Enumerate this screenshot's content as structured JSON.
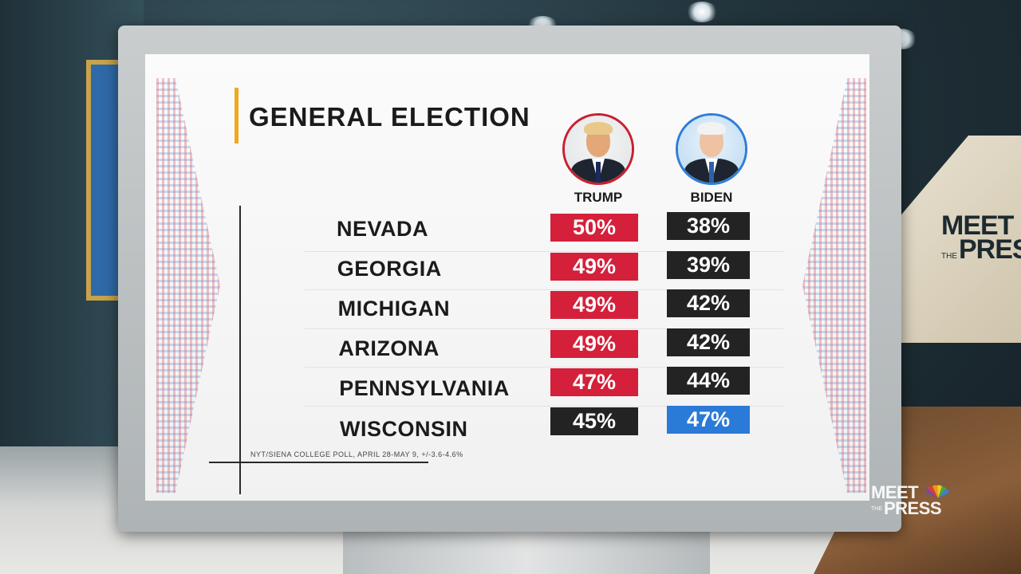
{
  "chart_data": {
    "type": "table",
    "title": "GENERAL ELECTION",
    "columns": [
      "TRUMP",
      "BIDEN"
    ],
    "rows": [
      {
        "state": "NEVADA",
        "trump": "50%",
        "biden": "38%",
        "trump_leads": true
      },
      {
        "state": "GEORGIA",
        "trump": "49%",
        "biden": "39%",
        "trump_leads": true
      },
      {
        "state": "MICHIGAN",
        "trump": "49%",
        "biden": "42%",
        "trump_leads": true
      },
      {
        "state": "ARIZONA",
        "trump": "49%",
        "biden": "42%",
        "trump_leads": true
      },
      {
        "state": "PENNSYLVANIA",
        "trump": "47%",
        "biden": "44%",
        "trump_leads": true
      },
      {
        "state": "WISCONSIN",
        "trump": "45%",
        "biden": "47%",
        "trump_leads": false
      }
    ],
    "source": "NYT/SIENA COLLEGE POLL, APRIL 28-MAY 9, +/-3.6-4.6%",
    "colors": {
      "republican_lead": "#d4203a",
      "democrat_lead": "#2a7ad8",
      "trailing": "#232323",
      "accent": "#f0a91b"
    }
  },
  "candidates": {
    "trump": {
      "name": "TRUMP",
      "ring_color": "#c8202f"
    },
    "biden": {
      "name": "BIDEN",
      "ring_color": "#2d7fd6"
    }
  },
  "branding": {
    "logo_line1": "MEET",
    "logo_the": "THE",
    "logo_line2": "PRESS",
    "logo_icon": "nbc-peacock-icon"
  }
}
